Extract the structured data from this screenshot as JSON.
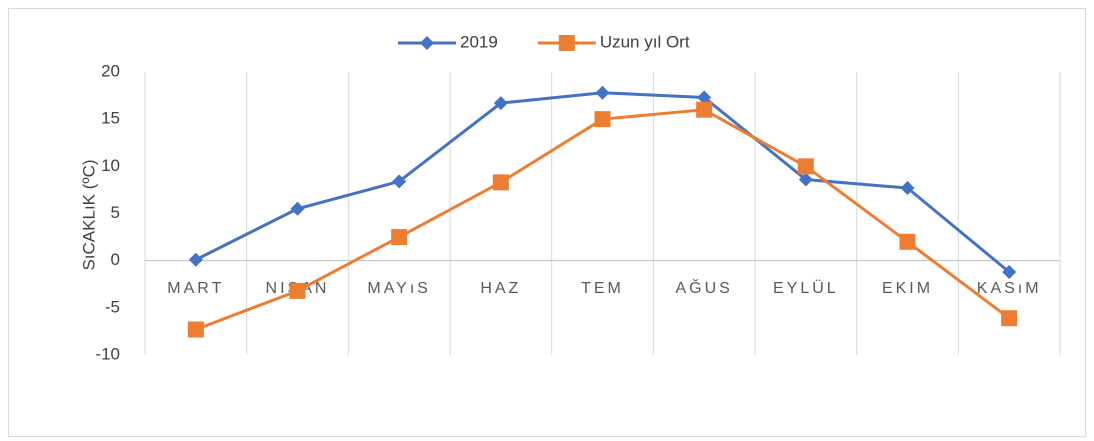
{
  "chart_data": {
    "type": "line",
    "categories": [
      "MART",
      "NISAN",
      "MAYıS",
      "HAZ",
      "TEM",
      "AĞUS",
      "EYLÜL",
      "EKIM",
      "KASıM"
    ],
    "y_label": "SıCAKLıK (ºC)",
    "series": [
      {
        "name": "2019",
        "color": "#4472c4",
        "marker": "diamond",
        "values": [
          0.1,
          5.5,
          8.4,
          16.7,
          17.8,
          17.3,
          8.6,
          7.7,
          -1.2
        ]
      },
      {
        "name": "Uzun yıl Ort",
        "color": "#ed7d31",
        "marker": "square",
        "values": [
          -7.3,
          -3.2,
          2.5,
          8.3,
          15.0,
          16.0,
          10.0,
          2.0,
          -6.1
        ]
      }
    ],
    "ylim": [
      -10,
      20
    ],
    "yticks": [
      -10,
      -5,
      0,
      5,
      10,
      15,
      20
    ],
    "grid": "vertical",
    "legend": "top"
  }
}
